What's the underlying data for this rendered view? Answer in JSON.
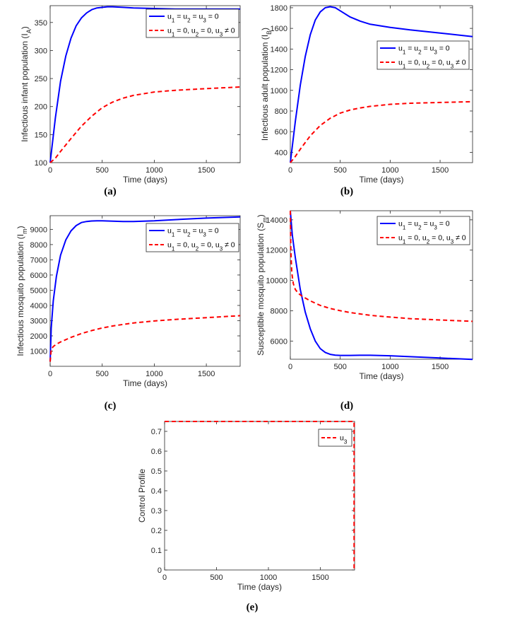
{
  "chart_data": [
    {
      "type": "line",
      "caption": "(a)",
      "xlabel": "Time (days)",
      "ylabel": "Infectious infant population (I",
      "ylabel_sub": "A",
      "ylabel_end": ")",
      "xlim": [
        0,
        1825
      ],
      "ylim": [
        100,
        380
      ],
      "xticks": [
        0,
        500,
        1000,
        1500
      ],
      "yticks": [
        100,
        150,
        200,
        250,
        300,
        350
      ],
      "legend_position": "top-right",
      "series": [
        {
          "name_parts": [
            "u",
            "1",
            " = u",
            "2",
            " = u",
            "3",
            " = 0"
          ],
          "color": "#0000ff",
          "dash": "solid",
          "x": [
            0,
            50,
            100,
            150,
            200,
            250,
            300,
            350,
            400,
            450,
            500,
            550,
            600,
            700,
            800,
            1000,
            1200,
            1500,
            1825
          ],
          "y": [
            100,
            180,
            245,
            290,
            322,
            344,
            358,
            367,
            373,
            376,
            377,
            378,
            378,
            377,
            376,
            375,
            374,
            374,
            374
          ]
        },
        {
          "name_parts": [
            "u",
            "1",
            " = 0, u",
            "2",
            " = 0, u",
            "3",
            " ≠ 0"
          ],
          "color": "#ff0000",
          "dash": "dashed",
          "x": [
            0,
            50,
            100,
            200,
            300,
            400,
            500,
            600,
            700,
            800,
            900,
            1000,
            1200,
            1400,
            1600,
            1825
          ],
          "y": [
            100,
            108,
            120,
            143,
            165,
            183,
            198,
            208,
            215,
            220,
            223,
            226,
            229,
            231,
            233,
            235
          ]
        }
      ]
    },
    {
      "type": "line",
      "caption": "(b)",
      "xlabel": "Time (days)",
      "ylabel": "Infectious adult population (I",
      "ylabel_sub": "B",
      "ylabel_end": ")",
      "xlim": [
        0,
        1825
      ],
      "ylim": [
        300,
        1820
      ],
      "xticks": [
        0,
        500,
        1000,
        1500
      ],
      "yticks": [
        400,
        600,
        800,
        1000,
        1200,
        1400,
        1600,
        1800
      ],
      "legend_position": "upper-right",
      "series": [
        {
          "name_parts": [
            "u",
            "1",
            " = u",
            "2",
            " = u",
            "3",
            " = 0"
          ],
          "color": "#0000ff",
          "dash": "solid",
          "x": [
            0,
            50,
            100,
            150,
            200,
            250,
            300,
            350,
            400,
            450,
            500,
            600,
            700,
            800,
            1000,
            1200,
            1500,
            1825
          ],
          "y": [
            300,
            700,
            1050,
            1330,
            1540,
            1680,
            1760,
            1800,
            1810,
            1800,
            1770,
            1710,
            1670,
            1640,
            1610,
            1585,
            1555,
            1520
          ]
        },
        {
          "name_parts": [
            "u",
            "1",
            " = 0, u",
            "2",
            " = 0, u",
            "3",
            " ≠ 0"
          ],
          "color": "#ff0000",
          "dash": "dashed",
          "x": [
            0,
            50,
            100,
            200,
            300,
            400,
            500,
            600,
            700,
            800,
            1000,
            1200,
            1500,
            1825
          ],
          "y": [
            300,
            360,
            430,
            560,
            660,
            730,
            780,
            810,
            830,
            845,
            865,
            875,
            883,
            890
          ]
        }
      ]
    },
    {
      "type": "line",
      "caption": "(c)",
      "xlabel": "Time (days)",
      "ylabel": "Infectious mosquito population (I",
      "ylabel_sub": "m",
      "ylabel_end": ")",
      "xlim": [
        0,
        1825
      ],
      "ylim": [
        0,
        9900
      ],
      "xticks": [
        0,
        500,
        1000,
        1500
      ],
      "yticks": [
        1000,
        2000,
        3000,
        4000,
        5000,
        6000,
        7000,
        8000,
        9000
      ],
      "legend_position": "top-right",
      "series": [
        {
          "name_parts": [
            "u",
            "1",
            " = u",
            "2",
            " = u",
            "3",
            " = 0"
          ],
          "color": "#0000ff",
          "dash": "solid",
          "x": [
            0,
            10,
            30,
            60,
            100,
            150,
            200,
            250,
            300,
            350,
            400,
            450,
            500,
            600,
            700,
            800,
            1000,
            1200,
            1500,
            1825
          ],
          "y": [
            300,
            2500,
            4300,
            5900,
            7300,
            8300,
            8900,
            9250,
            9450,
            9520,
            9550,
            9560,
            9560,
            9540,
            9520,
            9520,
            9560,
            9640,
            9740,
            9820
          ]
        },
        {
          "name_parts": [
            "u",
            "1",
            " = 0, u",
            "2",
            " = 0, u",
            "3",
            " ≠ 0"
          ],
          "color": "#ff0000",
          "dash": "dashed",
          "x": [
            0,
            10,
            30,
            60,
            100,
            200,
            300,
            400,
            500,
            600,
            700,
            800,
            1000,
            1200,
            1500,
            1825
          ],
          "y": [
            300,
            1100,
            1300,
            1450,
            1600,
            1900,
            2150,
            2350,
            2520,
            2650,
            2750,
            2850,
            2980,
            3080,
            3200,
            3330
          ]
        }
      ]
    },
    {
      "type": "line",
      "caption": "(d)",
      "xlabel": "Time (days)",
      "ylabel": "Susceptible mosquito population (S",
      "ylabel_sub": "m",
      "ylabel_end": ")",
      "xlim": [
        0,
        1825
      ],
      "ylim": [
        4800,
        14600
      ],
      "xticks": [
        0,
        500,
        1000,
        1500
      ],
      "yticks": [
        6000,
        8000,
        10000,
        12000,
        14000
      ],
      "legend_position": "top-right",
      "series": [
        {
          "name_parts": [
            "u",
            "1",
            " = u",
            "2",
            " = u",
            "3",
            " = 0"
          ],
          "color": "#0000ff",
          "dash": "solid",
          "x": [
            0,
            20,
            50,
            100,
            150,
            200,
            250,
            300,
            350,
            400,
            450,
            500,
            600,
            700,
            800,
            1000,
            1200,
            1500,
            1825
          ],
          "y": [
            14600,
            13000,
            11500,
            9400,
            7900,
            6800,
            6000,
            5500,
            5250,
            5120,
            5070,
            5050,
            5050,
            5060,
            5060,
            5030,
            4970,
            4880,
            4790
          ]
        },
        {
          "name_parts": [
            "u",
            "1",
            " = 0, u",
            "2",
            " = 0, u",
            "3",
            " ≠ 0"
          ],
          "color": "#ff0000",
          "dash": "dashed",
          "x": [
            0,
            5,
            15,
            30,
            50,
            80,
            120,
            200,
            300,
            400,
            500,
            600,
            800,
            1000,
            1200,
            1500,
            1825
          ],
          "y": [
            14600,
            12000,
            10500,
            9800,
            9400,
            9150,
            8950,
            8650,
            8350,
            8150,
            8000,
            7880,
            7700,
            7580,
            7480,
            7390,
            7300
          ]
        }
      ]
    },
    {
      "type": "line",
      "caption": "(e)",
      "xlabel": "Time (days)",
      "ylabel": "Control Profile",
      "xlim": [
        0,
        1830
      ],
      "ylim": [
        0,
        0.75
      ],
      "xticks": [
        0,
        500,
        1000,
        1500
      ],
      "yticks": [
        0,
        0.1,
        0.2,
        0.3,
        0.4,
        0.5,
        0.6,
        0.7
      ],
      "legend_position": "top-right",
      "series": [
        {
          "name_parts": [
            "u",
            "3"
          ],
          "color": "#ff0000",
          "dash": "dashed",
          "x": [
            0,
            1825,
            1825
          ],
          "y": [
            0.75,
            0.75,
            0
          ]
        }
      ]
    }
  ]
}
